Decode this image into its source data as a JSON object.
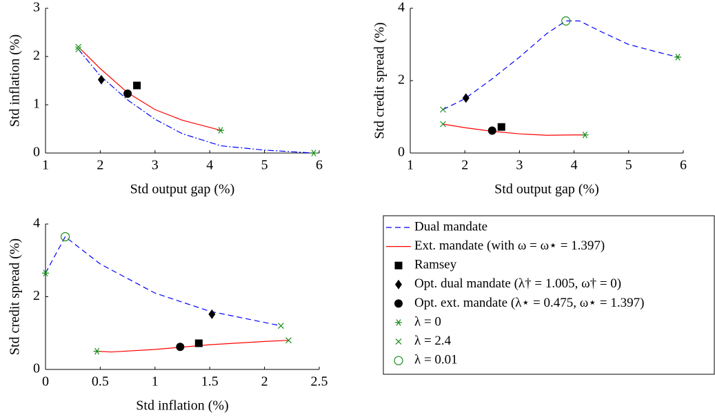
{
  "chart_data": [
    {
      "type": "line",
      "xlabel": "Std output gap (%)",
      "ylabel": "Std inflation (%)",
      "xlim": [
        1,
        6
      ],
      "ylim": [
        0,
        3
      ],
      "xticks": [
        1,
        2,
        3,
        4,
        5,
        6
      ],
      "yticks": [
        0,
        1,
        2,
        3
      ],
      "series": [
        {
          "mode": "line",
          "dash": "dashdot",
          "color": "#0000ff",
          "x": [
            1.6,
            2.0,
            2.5,
            3.0,
            3.5,
            4.2,
            5.0,
            5.9
          ],
          "values": [
            2.15,
            1.6,
            1.1,
            0.7,
            0.4,
            0.15,
            0.06,
            0.0
          ]
        },
        {
          "mode": "line",
          "dash": "solid",
          "color": "#ff0000",
          "x": [
            1.6,
            2.0,
            2.5,
            3.0,
            3.5,
            4.2
          ],
          "values": [
            2.2,
            1.75,
            1.25,
            0.9,
            0.68,
            0.47
          ]
        },
        {
          "mode": "marker",
          "marker": "square",
          "color": "#000000",
          "x": [
            2.67
          ],
          "values": [
            1.4
          ]
        },
        {
          "mode": "marker",
          "marker": "diamond",
          "color": "#000000",
          "x": [
            2.02
          ],
          "values": [
            1.52
          ]
        },
        {
          "mode": "marker",
          "marker": "circle",
          "color": "#000000",
          "x": [
            2.5
          ],
          "values": [
            1.23
          ]
        },
        {
          "mode": "marker",
          "marker": "star",
          "color": "#1a8c1a",
          "x": [
            5.9,
            4.2
          ],
          "values": [
            0.0,
            0.47
          ]
        },
        {
          "mode": "marker",
          "marker": "x",
          "color": "#1a8c1a",
          "x": [
            1.6,
            1.6
          ],
          "values": [
            2.15,
            2.2
          ]
        }
      ]
    },
    {
      "type": "line",
      "xlabel": "Std output gap (%)",
      "ylabel": "Std credit spread (%)",
      "xlim": [
        1,
        6
      ],
      "ylim": [
        0,
        4
      ],
      "xticks": [
        1,
        2,
        3,
        4,
        5,
        6
      ],
      "yticks": [
        0,
        2,
        4
      ],
      "series": [
        {
          "mode": "line",
          "dash": "dashed",
          "color": "#0000ff",
          "x": [
            1.6,
            2.0,
            2.5,
            3.0,
            3.5,
            3.85,
            4.1,
            4.5,
            5.0,
            5.5,
            5.9
          ],
          "values": [
            1.2,
            1.5,
            2.05,
            2.65,
            3.3,
            3.65,
            3.65,
            3.35,
            3.0,
            2.8,
            2.65
          ]
        },
        {
          "mode": "line",
          "dash": "solid",
          "color": "#ff0000",
          "x": [
            1.6,
            2.0,
            2.5,
            3.0,
            3.5,
            4.0,
            4.2
          ],
          "values": [
            0.8,
            0.7,
            0.6,
            0.53,
            0.49,
            0.5,
            0.5
          ]
        },
        {
          "mode": "marker",
          "marker": "square",
          "color": "#000000",
          "x": [
            2.67
          ],
          "values": [
            0.72
          ]
        },
        {
          "mode": "marker",
          "marker": "diamond",
          "color": "#000000",
          "x": [
            2.02
          ],
          "values": [
            1.52
          ]
        },
        {
          "mode": "marker",
          "marker": "circle",
          "color": "#000000",
          "x": [
            2.5
          ],
          "values": [
            0.62
          ]
        },
        {
          "mode": "marker",
          "marker": "star",
          "color": "#1a8c1a",
          "x": [
            5.9,
            4.2
          ],
          "values": [
            2.65,
            0.5
          ]
        },
        {
          "mode": "marker",
          "marker": "x",
          "color": "#1a8c1a",
          "x": [
            1.6,
            1.6
          ],
          "values": [
            1.2,
            0.8
          ]
        },
        {
          "mode": "marker",
          "marker": "open-circle",
          "color": "#1a8c1a",
          "x": [
            3.85
          ],
          "values": [
            3.65
          ]
        }
      ]
    },
    {
      "type": "line",
      "xlabel": "Std inflation (%)",
      "ylabel": "Std credit spread (%)",
      "xlim": [
        0,
        2.5
      ],
      "ylim": [
        0,
        4
      ],
      "xticks": [
        0,
        0.5,
        1,
        1.5,
        2,
        2.5
      ],
      "yticks": [
        0,
        2,
        4
      ],
      "series": [
        {
          "name": "Dual mandate",
          "mode": "line",
          "dash": "dashed",
          "color": "#0000ff",
          "x": [
            0,
            0.18,
            0.5,
            1.0,
            1.5,
            2.15
          ],
          "values": [
            2.65,
            3.65,
            2.9,
            2.1,
            1.6,
            1.2
          ]
        },
        {
          "name": "Ext. mandate (with ω = ω⋆ = 1.397)",
          "mode": "line",
          "dash": "solid",
          "color": "#ff0000",
          "x": [
            0.47,
            0.6,
            1.0,
            1.5,
            2.0,
            2.22
          ],
          "values": [
            0.5,
            0.48,
            0.55,
            0.68,
            0.77,
            0.8
          ]
        },
        {
          "name": "Ramsey",
          "mode": "marker",
          "marker": "square",
          "color": "#000000",
          "x": [
            1.4
          ],
          "values": [
            0.72
          ]
        },
        {
          "name": "Opt. dual mandate (λ† = 1.005, ω† = 0)",
          "mode": "marker",
          "marker": "diamond",
          "color": "#000000",
          "x": [
            1.52
          ],
          "values": [
            1.52
          ]
        },
        {
          "name": "Opt. ext. mandate (λ⋆ = 0.475, ω⋆ = 1.397)",
          "mode": "marker",
          "marker": "circle",
          "color": "#000000",
          "x": [
            1.23
          ],
          "values": [
            0.62
          ]
        },
        {
          "name": "λ = 0",
          "mode": "marker",
          "marker": "star",
          "color": "#1a8c1a",
          "x": [
            0,
            0.47
          ],
          "values": [
            2.65,
            0.5
          ]
        },
        {
          "name": "λ = 2.4",
          "mode": "marker",
          "marker": "x",
          "color": "#1a8c1a",
          "x": [
            2.15,
            2.22
          ],
          "values": [
            1.2,
            0.8
          ]
        },
        {
          "name": "λ = 0.01",
          "mode": "marker",
          "marker": "open-circle",
          "color": "#1a8c1a",
          "x": [
            0.18
          ],
          "values": [
            3.65
          ]
        }
      ]
    }
  ]
}
